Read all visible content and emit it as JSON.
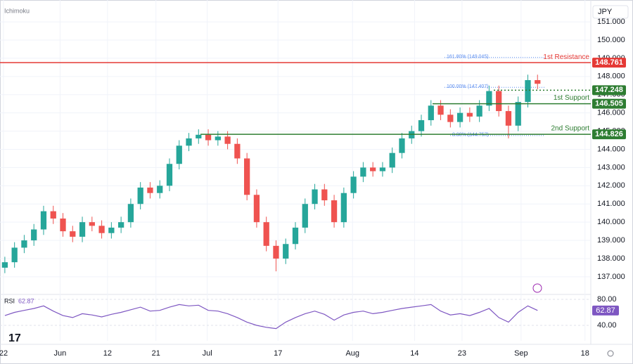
{
  "chart_data": {
    "type": "candlestick",
    "indicator": "Ichimoku",
    "currency": "JPY",
    "xlim": [
      0,
      61
    ],
    "xticks": [
      {
        "value": 0.36,
        "label": "22"
      },
      {
        "value": 6.2,
        "label": "Jun"
      },
      {
        "value": 11.1,
        "label": "12"
      },
      {
        "value": 16.1,
        "label": "21"
      },
      {
        "value": 21.4,
        "label": "Jul"
      },
      {
        "value": 28.7,
        "label": "17"
      },
      {
        "value": 36.4,
        "label": "Aug"
      },
      {
        "value": 42.8,
        "label": "14"
      },
      {
        "value": 47.7,
        "label": "23"
      },
      {
        "value": 53.8,
        "label": "Sep"
      },
      {
        "value": 60.4,
        "label": "18"
      }
    ],
    "ylim": [
      136.07,
      152.2
    ],
    "yticks": [
      {
        "value": 137,
        "label": "137.000"
      },
      {
        "value": 138,
        "label": "138.000"
      },
      {
        "value": 139,
        "label": "139.000"
      },
      {
        "value": 140,
        "label": "140.000"
      },
      {
        "value": 141,
        "label": "141.000"
      },
      {
        "value": 142,
        "label": "142.000"
      },
      {
        "value": 143,
        "label": "143.000"
      },
      {
        "value": 144,
        "label": "144.000"
      },
      {
        "value": 145,
        "label": "145.000"
      },
      {
        "value": 146,
        "label": "146.000"
      },
      {
        "value": 147,
        "label": "147.000"
      },
      {
        "value": 148,
        "label": "148.000"
      },
      {
        "value": 149,
        "label": "149.000"
      },
      {
        "value": 150,
        "label": "150.000"
      },
      {
        "value": 151,
        "label": "151.000"
      }
    ],
    "grid": true,
    "up_color": "#26a69a",
    "down_color": "#ef5350",
    "open": [
      137.5,
      137.8,
      138.6,
      139.0,
      139.6,
      140.6,
      140.2,
      139.5,
      139.2,
      140.0,
      139.8,
      139.4,
      139.7,
      140.0,
      141.0,
      141.9,
      141.6,
      142.0,
      143.2,
      144.2,
      144.6,
      144.8,
      144.5,
      144.7,
      144.3,
      143.5,
      141.5,
      140.0,
      138.7,
      138.0,
      138.8,
      139.7,
      141.0,
      141.8,
      141.2,
      140.0,
      141.6,
      142.5,
      143.0,
      142.8,
      143.0,
      143.8,
      144.6,
      145.0,
      145.6,
      146.4,
      145.9,
      145.5,
      146.0,
      145.8,
      146.4,
      147.2,
      146.1,
      145.3,
      146.6,
      147.8
    ],
    "high": [
      138.1,
      138.9,
      139.3,
      139.9,
      140.9,
      140.9,
      140.5,
      139.8,
      140.3,
      140.3,
      140.1,
      140.0,
      140.3,
      141.3,
      142.2,
      142.2,
      142.3,
      143.5,
      144.5,
      144.9,
      145.1,
      145.1,
      145.0,
      145.0,
      144.6,
      143.8,
      141.8,
      140.3,
      139.0,
      139.1,
      140.0,
      141.3,
      142.1,
      142.1,
      141.5,
      141.9,
      142.8,
      143.3,
      143.3,
      143.3,
      144.1,
      144.9,
      145.3,
      145.9,
      146.7,
      146.7,
      146.2,
      146.3,
      146.3,
      146.7,
      147.5,
      147.5,
      146.4,
      146.9,
      148.1,
      148.1
    ],
    "low": [
      137.2,
      137.5,
      138.3,
      138.7,
      139.3,
      139.9,
      139.2,
      138.9,
      138.9,
      139.5,
      139.1,
      139.1,
      139.4,
      139.7,
      140.7,
      141.3,
      141.3,
      141.7,
      142.9,
      143.9,
      144.3,
      144.2,
      144.2,
      144.0,
      143.2,
      141.2,
      139.7,
      138.4,
      137.3,
      137.7,
      138.5,
      139.4,
      140.7,
      140.9,
      139.7,
      139.7,
      141.3,
      142.2,
      142.5,
      142.5,
      142.7,
      143.5,
      144.3,
      144.7,
      145.3,
      145.6,
      145.2,
      145.2,
      145.5,
      145.5,
      146.1,
      145.8,
      144.6,
      145.0,
      146.3,
      147.3
    ],
    "close": [
      137.8,
      138.6,
      139.0,
      139.6,
      140.6,
      140.2,
      139.5,
      139.2,
      140.0,
      139.8,
      139.4,
      139.7,
      140.0,
      141.0,
      141.9,
      141.6,
      142.0,
      143.2,
      144.2,
      144.6,
      144.8,
      144.5,
      144.7,
      144.3,
      143.5,
      141.5,
      140.0,
      138.7,
      138.0,
      138.8,
      139.7,
      141.0,
      141.8,
      141.2,
      140.0,
      141.6,
      142.5,
      143.0,
      142.8,
      143.0,
      143.8,
      144.6,
      145.0,
      145.6,
      146.4,
      145.9,
      145.5,
      146.0,
      145.8,
      146.4,
      147.2,
      146.1,
      145.3,
      146.6,
      147.8,
      147.6
    ],
    "levels": [
      {
        "name": "1st Resistance",
        "value": 148.761,
        "color": "#e53935"
      },
      {
        "value": 147.248,
        "color": "#2e7d32"
      },
      {
        "name": "1st Support",
        "value": 146.505,
        "color": "#2e7d32"
      },
      {
        "name": "2nd Support",
        "value": 144.826,
        "color": "#2e7d32"
      }
    ],
    "fib": [
      {
        "label": "161.80% (149.045)",
        "value": 149.045
      },
      {
        "label": "100.00% (147.407)",
        "value": 147.407
      },
      {
        "label": "0.00% (144.757)",
        "value": 144.757
      }
    ],
    "rsi": {
      "name": "RSI",
      "color": "#7e57c2",
      "ylim": [
        16.2,
        86.5
      ],
      "yticks": [
        {
          "value": 80,
          "label": "80.00"
        },
        {
          "value": 40,
          "label": "40.00"
        }
      ],
      "values": [
        55,
        60,
        63,
        66,
        70,
        62,
        55,
        52,
        58,
        56,
        53,
        57,
        60,
        64,
        68,
        62,
        63,
        68,
        72,
        70,
        71,
        63,
        62,
        58,
        52,
        45,
        40,
        37,
        35,
        45,
        52,
        58,
        62,
        57,
        48,
        56,
        60,
        62,
        58,
        60,
        63,
        66,
        68,
        70,
        72,
        62,
        56,
        58,
        55,
        60,
        66,
        52,
        45,
        60,
        70,
        62.87
      ]
    }
  }
}
